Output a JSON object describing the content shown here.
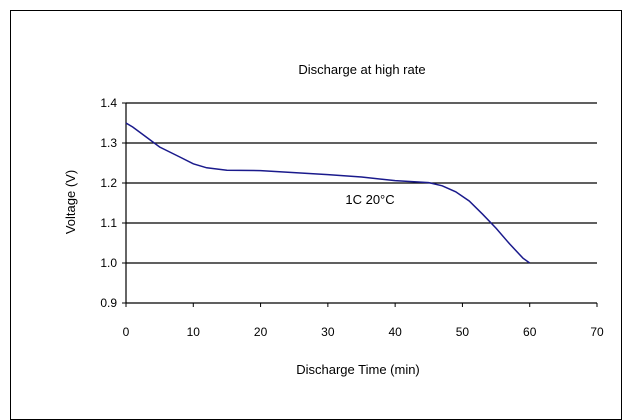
{
  "chart_data": {
    "type": "line",
    "title": "Discharge at high rate",
    "xlabel": "Discharge Time (min)",
    "ylabel": "Voltage (V)",
    "xlim": [
      0,
      70
    ],
    "ylim": [
      0.9,
      1.4
    ],
    "xticks": [
      0,
      10,
      20,
      30,
      40,
      50,
      60,
      70
    ],
    "yticks": [
      0.9,
      1.0,
      1.1,
      1.2,
      1.3,
      1.4
    ],
    "ytick_labels": [
      "0.9",
      "1.0",
      "1.1",
      "1.2",
      "1.3",
      "1.4"
    ],
    "grid": "horizontal",
    "annotation": "1C  20°C",
    "series": [
      {
        "color": "#1a1a8c",
        "x": [
          0,
          1,
          3,
          5,
          8,
          10,
          12,
          15,
          20,
          25,
          30,
          35,
          40,
          45,
          47,
          49,
          51,
          53,
          55,
          57,
          59,
          60
        ],
        "y": [
          1.35,
          1.34,
          1.315,
          1.29,
          1.265,
          1.248,
          1.238,
          1.232,
          1.231,
          1.226,
          1.221,
          1.215,
          1.206,
          1.201,
          1.193,
          1.178,
          1.155,
          1.122,
          1.087,
          1.048,
          1.012,
          1.0
        ]
      }
    ]
  }
}
